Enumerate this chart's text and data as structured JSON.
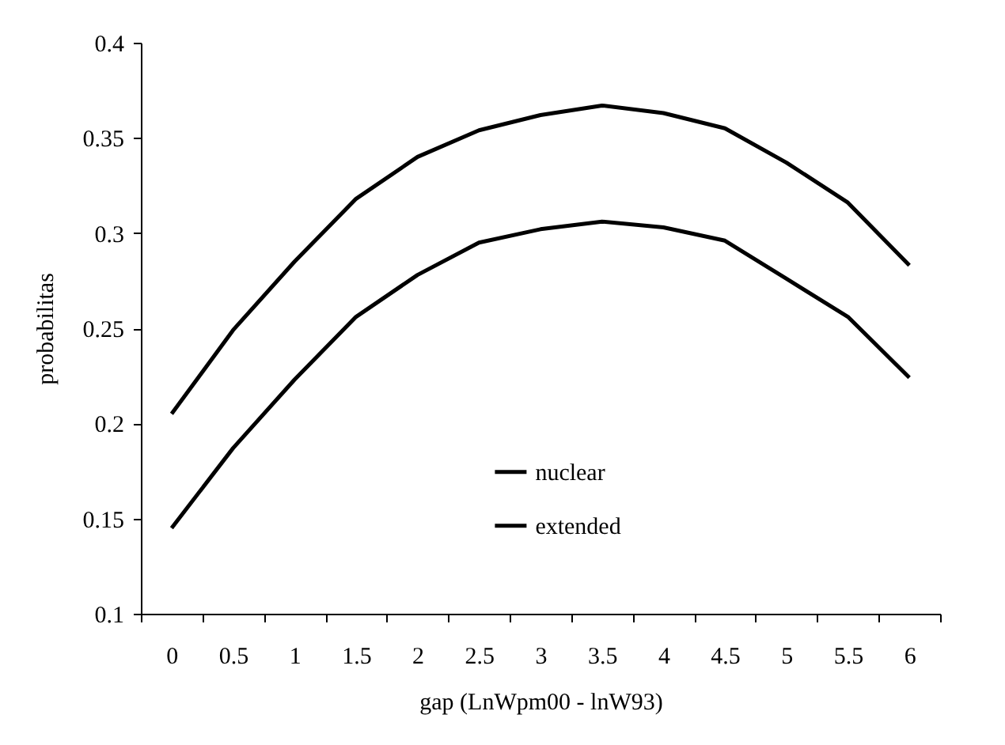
{
  "chart_data": {
    "type": "line",
    "xlabel": "gap (LnWpm00 - lnW93)",
    "ylabel": "probabilitas",
    "categories": [
      "0",
      "0.5",
      "1",
      "1.5",
      "2",
      "2.5",
      "3",
      "3.5",
      "4",
      "4.5",
      "5",
      "5.5",
      "6"
    ],
    "series": [
      {
        "name": "nuclear",
        "color": "#000000",
        "values": [
          0.205,
          0.249,
          0.285,
          0.318,
          0.34,
          0.354,
          0.362,
          0.367,
          0.363,
          0.355,
          0.337,
          0.316,
          0.283
        ]
      },
      {
        "name": "extended",
        "color": "#000000",
        "values": [
          0.145,
          0.187,
          0.223,
          0.256,
          0.278,
          0.295,
          0.302,
          0.306,
          0.303,
          0.296,
          0.276,
          0.256,
          0.224
        ]
      }
    ],
    "ylim": [
      0.1,
      0.4
    ],
    "yticks": [
      0.1,
      0.15,
      0.2,
      0.25,
      0.3,
      0.35,
      0.4
    ],
    "grid": false,
    "legend": "bottom",
    "marker": "none",
    "line_style": "solid"
  }
}
